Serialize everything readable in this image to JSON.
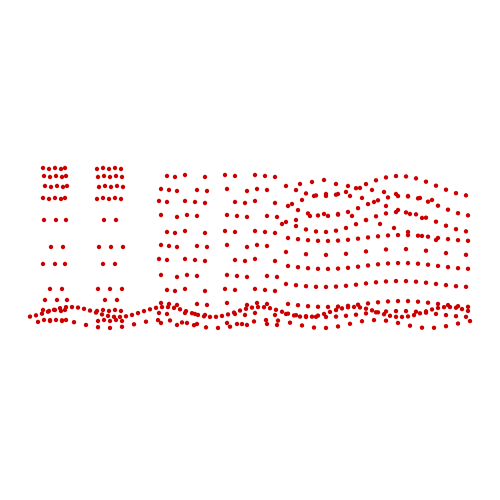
{
  "scene": {
    "background": "#ffffff",
    "point_color": "#cc0000",
    "description_visible_text": ""
  }
}
